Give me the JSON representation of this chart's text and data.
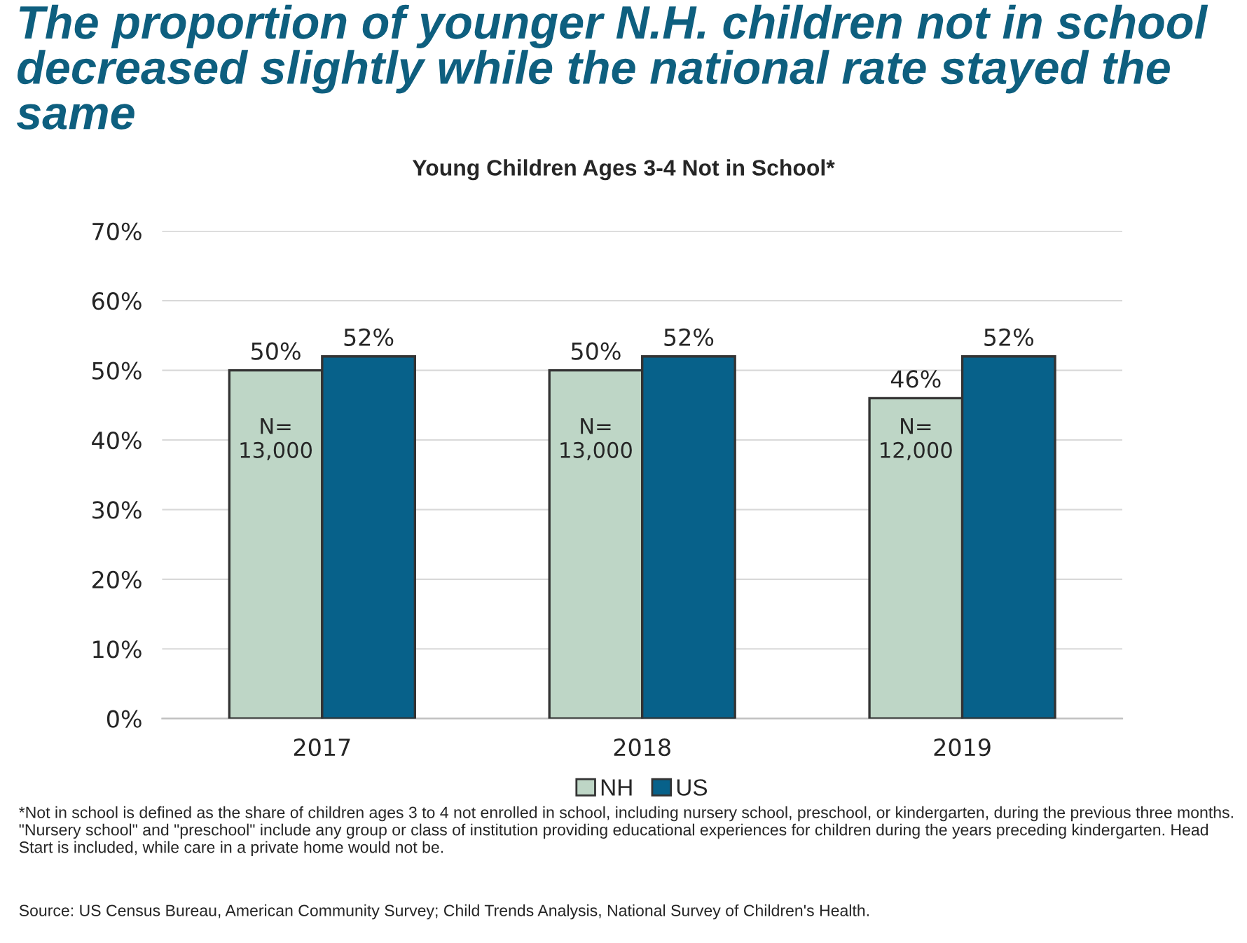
{
  "chart_data": {
    "type": "bar",
    "title": "The proportion of younger N.H. children not in school decreased slightly while the national rate stayed the same",
    "subtitle": "Young Children Ages 3-4 Not in School*",
    "categories": [
      "2017",
      "2018",
      "2019"
    ],
    "series": [
      {
        "name": "NH",
        "color": "#bed6c6",
        "values": [
          50,
          50,
          46
        ],
        "value_labels": [
          "50%",
          "50%",
          "46%"
        ]
      },
      {
        "name": "US",
        "color": "#07618a",
        "values": [
          52,
          52,
          52
        ],
        "value_labels": [
          "52%",
          "52%",
          "52%"
        ]
      }
    ],
    "ylim": [
      0,
      70
    ],
    "yticks": [
      {
        "value": 0,
        "label": "0%"
      },
      {
        "value": 10,
        "label": "10%"
      },
      {
        "value": 20,
        "label": "20%"
      },
      {
        "value": 30,
        "label": "30%"
      },
      {
        "value": 40,
        "label": "40%"
      },
      {
        "value": 50,
        "label": "50%"
      },
      {
        "value": 60,
        "label": "60%"
      },
      {
        "value": 70,
        "label": "70%"
      }
    ],
    "grid": "y",
    "legend": "bottom",
    "annotations": [
      {
        "text": "N=\n13,000",
        "x": "2017",
        "y": 40
      },
      {
        "text": "N=\n13,000",
        "x": "2018",
        "y": 40
      },
      {
        "text": "N=\n12,000",
        "x": "2019",
        "y": 40
      },
      "*Not in school is defined as the share of children ages 3 to 4 not enrolled in school, including nursery school, preschool, or kindergarten, during the previous three months. \"Nursery school\" and \"preschool\" include any group or class of institution providing educational experiences for children during the years preceding kindergarten. Head Start is included, while care in a private home would not be.",
      "Source: US Census Bureau, American Community Survey; Child Trends Analysis, National Survey of Children's Health."
    ]
  }
}
